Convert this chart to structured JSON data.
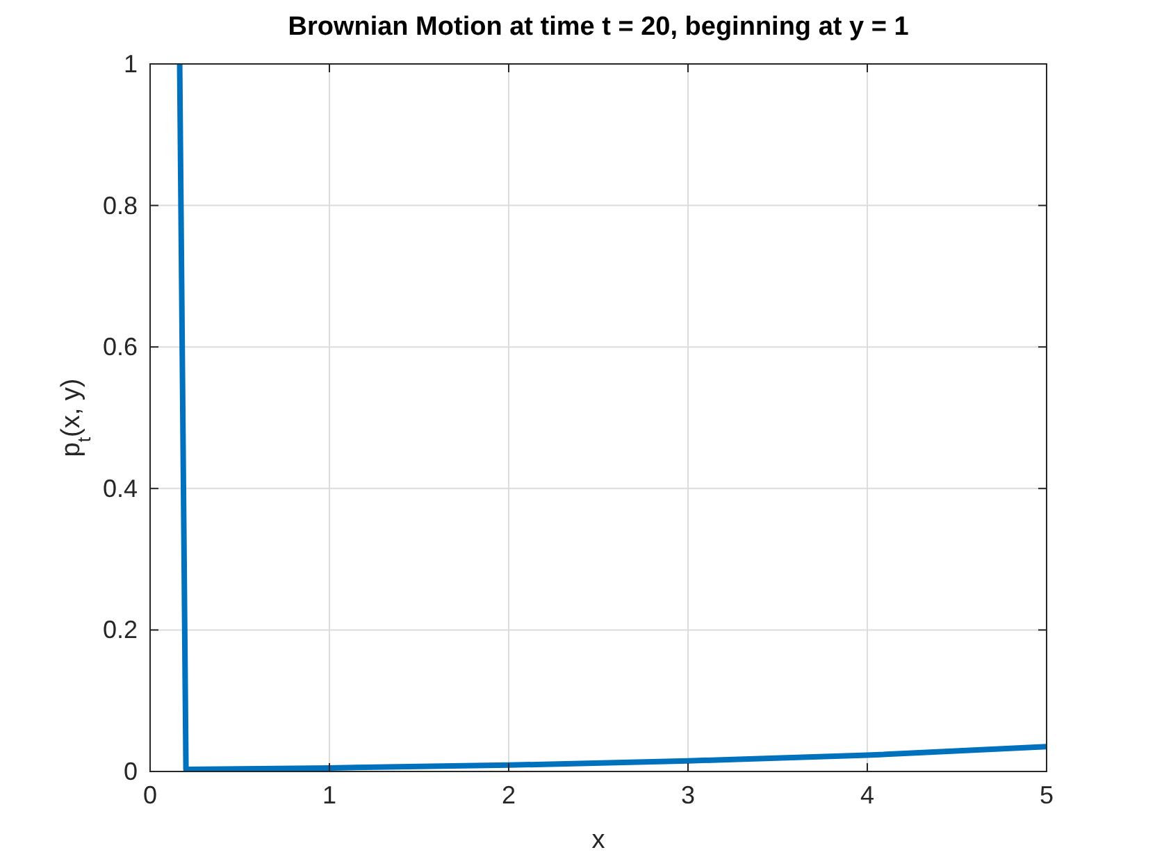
{
  "chart_data": {
    "type": "line",
    "title": "Brownian Motion at time t = 20, beginning at y = 1",
    "xlabel": "x",
    "ylabel": "p$_{t}$(x, y)",
    "series": [
      {
        "color": "#0072bd",
        "x": [
          0.165,
          0.2,
          1,
          2,
          3,
          4,
          5
        ],
        "values": [
          1,
          0.003,
          0.005,
          0.009,
          0.015,
          0.023,
          0.035
        ]
      }
    ],
    "xlim": [
      0,
      5
    ],
    "xticks": [
      0,
      1,
      2,
      3,
      4,
      5
    ],
    "ylim": [
      0,
      1
    ],
    "yticks": [
      0,
      0.2,
      0.4,
      0.6,
      0.8,
      1
    ],
    "grid": true,
    "marker": "none",
    "line_style": "solid"
  }
}
